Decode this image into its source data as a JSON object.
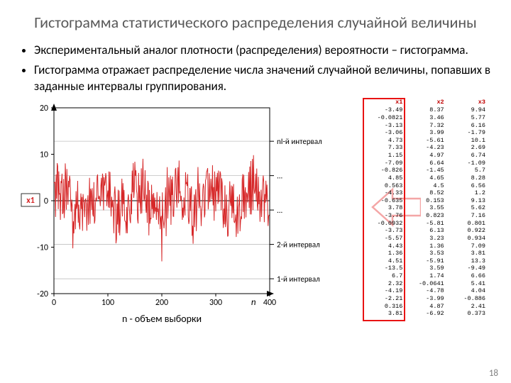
{
  "title": "Гистограмма статистического распределения случайной величины",
  "bullets": [
    "Экспериментальный аналог плотности (распределения) вероятности – гистограмма.",
    "Гистограмма отражает распределение числа значений случайной величины, попавших в заданные интервалы группирования."
  ],
  "pagenum": "18",
  "chart": {
    "type": "line",
    "series_label": "x1",
    "series_color": "#d62728",
    "axis_color": "#000000",
    "grid_color": "#e0e0e0",
    "background_color": "#ffffff",
    "xlim": [
      0,
      400
    ],
    "ylim": [
      -20,
      20
    ],
    "xticks": [
      0,
      100,
      200,
      300,
      400
    ],
    "yticks": [
      -20,
      -10,
      0,
      10,
      20
    ],
    "xlabel_extra": "n",
    "xlabel": "n - объем выборки",
    "interval_labels": [
      "nI-й интервал",
      "...",
      "...",
      "2-й интервал",
      "1-й интервал"
    ],
    "line_width": 1,
    "n_points": 400
  },
  "table": {
    "columns": [
      "x1",
      "x2",
      "x3"
    ],
    "highlight_col": 0,
    "highlight_color": "#e81313",
    "header_color": "#c00000",
    "rows": [
      [
        "-3.49",
        "8.37",
        "9.94"
      ],
      [
        "-0.0821",
        "3.46",
        "5.77"
      ],
      [
        "-3.13",
        "7.32",
        "6.16"
      ],
      [
        "-3.06",
        "3.99",
        "-1.79"
      ],
      [
        "4.73",
        "-5.61",
        "10.1"
      ],
      [
        "7.33",
        "-4.23",
        "2.69"
      ],
      [
        "1.15",
        "4.97",
        "6.74"
      ],
      [
        "-7.09",
        "6.64",
        "-1.09"
      ],
      [
        "-0.826",
        "-1.45",
        "5.7"
      ],
      [
        "4.85",
        "4.65",
        "8.28"
      ],
      [
        "0.563",
        "4.5",
        "6.56"
      ],
      [
        "-4.33",
        "8.52",
        "1.2"
      ],
      [
        "-0.635",
        "0.153",
        "9.13"
      ],
      [
        "3.78",
        "3.55",
        "5.62"
      ],
      [
        "-3.76",
        "0.823",
        "7.16"
      ],
      [
        "-0.0932",
        "-5.81",
        "0.801"
      ],
      [
        "-3.73",
        "6.13",
        "0.922"
      ],
      [
        "-5.57",
        "3.23",
        "0.934"
      ],
      [
        "4.43",
        "1.36",
        "7.09"
      ],
      [
        "1.36",
        "3.53",
        "3.81"
      ],
      [
        "4.51",
        "-5.91",
        "13.3"
      ],
      [
        "-13.5",
        "3.59",
        "-9.49"
      ],
      [
        "6.7",
        "1.74",
        "6.66"
      ],
      [
        "2.32",
        "-0.0641",
        "5.41"
      ],
      [
        "-4.19",
        "-4.78",
        "4.04"
      ],
      [
        "-2.21",
        "-3.99",
        "-0.886"
      ],
      [
        "0.316",
        "4.87",
        "2.41"
      ],
      [
        "3.81",
        "-6.92",
        "0.373"
      ]
    ]
  },
  "arrow_color": "#f4a6a6"
}
